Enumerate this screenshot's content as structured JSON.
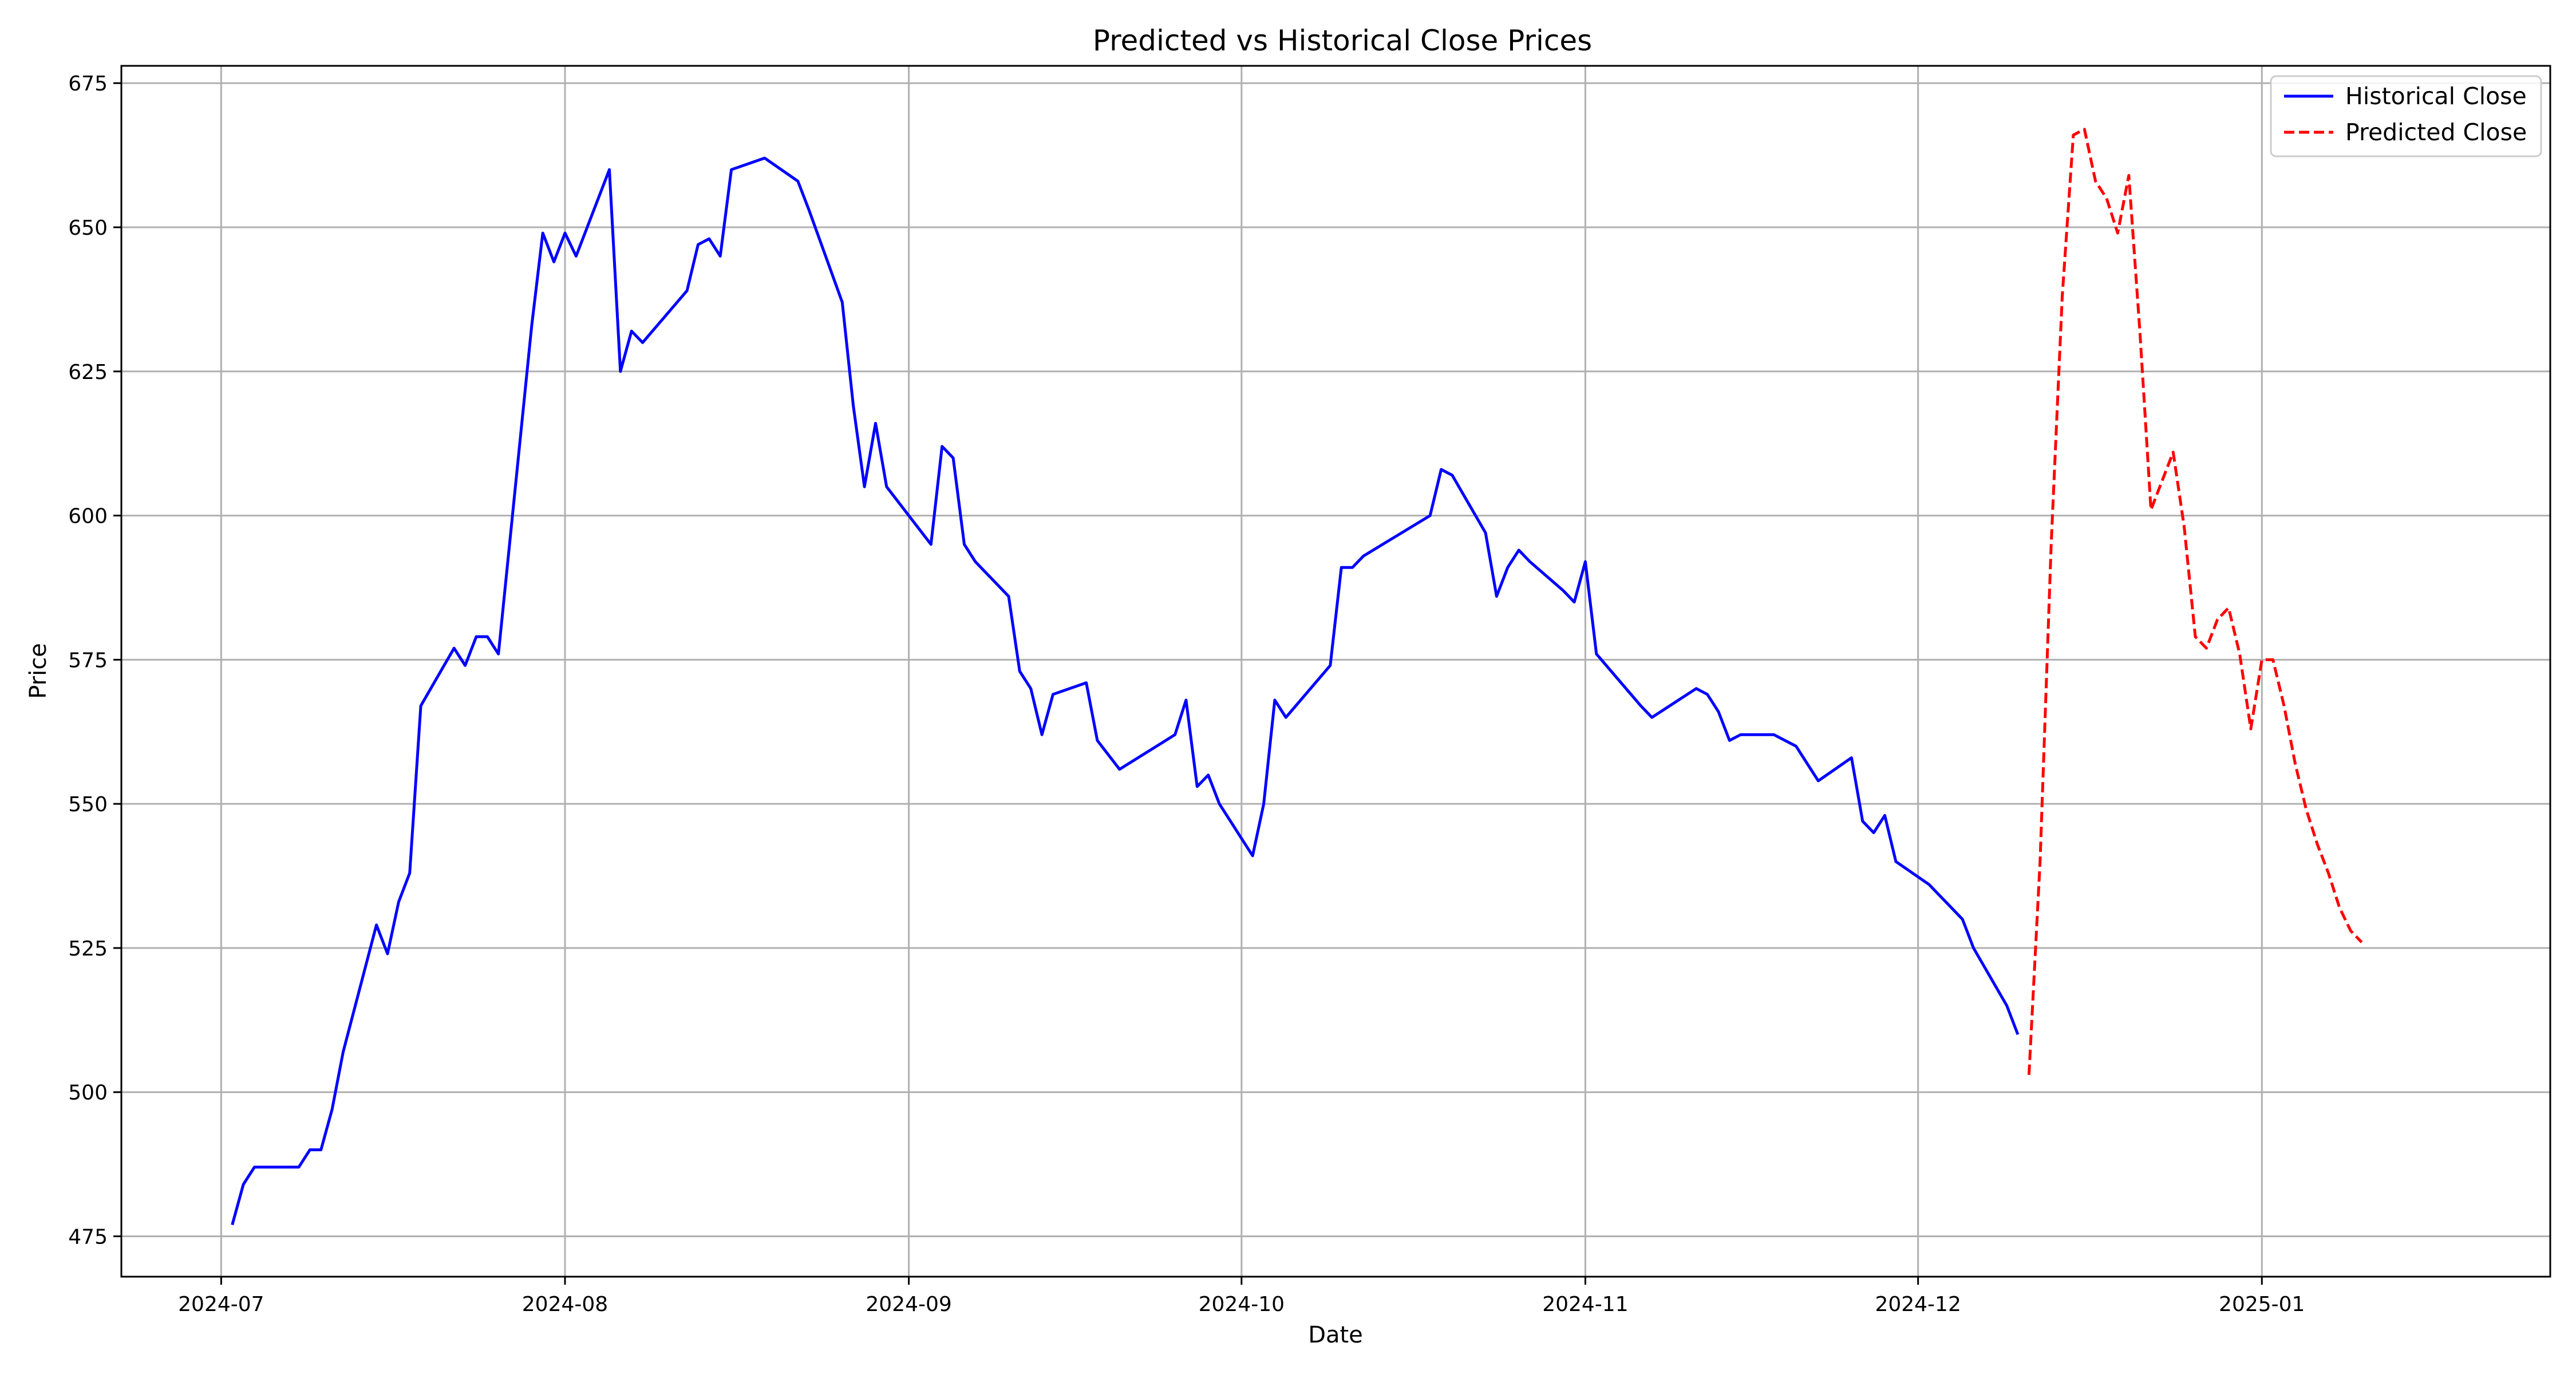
{
  "chart_data": {
    "type": "line",
    "title": "Predicted vs Historical Close Prices",
    "xlabel": "Date",
    "ylabel": "Price",
    "ylim": [
      468,
      678
    ],
    "xlim": [
      "2024-06-22",
      "2025-01-27"
    ],
    "grid": true,
    "legend_position": "top-right",
    "x_ticks": [
      "2024-07-01",
      "2024-08-01",
      "2024-09-01",
      "2024-10-01",
      "2024-11-01",
      "2024-12-01",
      "2025-01-01"
    ],
    "x_tick_labels": [
      "2024-07",
      "2024-08",
      "2024-09",
      "2024-10",
      "2024-11",
      "2024-12",
      "2025-01"
    ],
    "y_ticks": [
      475,
      500,
      525,
      550,
      575,
      600,
      625,
      650,
      675
    ],
    "series": [
      {
        "name": "Historical Close",
        "color": "#0000ff",
        "dash": "solid",
        "points": [
          [
            "2024-07-02",
            477
          ],
          [
            "2024-07-03",
            484
          ],
          [
            "2024-07-04",
            487
          ],
          [
            "2024-07-05",
            487
          ],
          [
            "2024-07-08",
            487
          ],
          [
            "2024-07-09",
            490
          ],
          [
            "2024-07-10",
            490
          ],
          [
            "2024-07-11",
            497
          ],
          [
            "2024-07-12",
            507
          ],
          [
            "2024-07-15",
            529
          ],
          [
            "2024-07-16",
            524
          ],
          [
            "2024-07-17",
            533
          ],
          [
            "2024-07-18",
            538
          ],
          [
            "2024-07-19",
            567
          ],
          [
            "2024-07-22",
            577
          ],
          [
            "2024-07-23",
            574
          ],
          [
            "2024-07-24",
            579
          ],
          [
            "2024-07-25",
            579
          ],
          [
            "2024-07-26",
            576
          ],
          [
            "2024-07-29",
            633
          ],
          [
            "2024-07-30",
            649
          ],
          [
            "2024-07-31",
            644
          ],
          [
            "2024-08-01",
            649
          ],
          [
            "2024-08-02",
            645
          ],
          [
            "2024-08-05",
            660
          ],
          [
            "2024-08-06",
            625
          ],
          [
            "2024-08-07",
            632
          ],
          [
            "2024-08-08",
            630
          ],
          [
            "2024-08-12",
            639
          ],
          [
            "2024-08-13",
            647
          ],
          [
            "2024-08-14",
            648
          ],
          [
            "2024-08-15",
            645
          ],
          [
            "2024-08-16",
            660
          ],
          [
            "2024-08-19",
            662
          ],
          [
            "2024-08-22",
            658
          ],
          [
            "2024-08-23",
            653
          ],
          [
            "2024-08-26",
            637
          ],
          [
            "2024-08-27",
            619
          ],
          [
            "2024-08-28",
            605
          ],
          [
            "2024-08-29",
            616
          ],
          [
            "2024-08-30",
            605
          ],
          [
            "2024-09-03",
            595
          ],
          [
            "2024-09-04",
            612
          ],
          [
            "2024-09-05",
            610
          ],
          [
            "2024-09-06",
            595
          ],
          [
            "2024-09-07",
            592
          ],
          [
            "2024-09-10",
            586
          ],
          [
            "2024-09-11",
            573
          ],
          [
            "2024-09-12",
            570
          ],
          [
            "2024-09-13",
            562
          ],
          [
            "2024-09-14",
            569
          ],
          [
            "2024-09-17",
            571
          ],
          [
            "2024-09-18",
            561
          ],
          [
            "2024-09-20",
            556
          ],
          [
            "2024-09-25",
            562
          ],
          [
            "2024-09-26",
            568
          ],
          [
            "2024-09-27",
            553
          ],
          [
            "2024-09-28",
            555
          ],
          [
            "2024-09-29",
            550
          ],
          [
            "2024-10-02",
            541
          ],
          [
            "2024-10-03",
            550
          ],
          [
            "2024-10-04",
            568
          ],
          [
            "2024-10-05",
            565
          ],
          [
            "2024-10-09",
            574
          ],
          [
            "2024-10-10",
            591
          ],
          [
            "2024-10-11",
            591
          ],
          [
            "2024-10-12",
            593
          ],
          [
            "2024-10-18",
            600
          ],
          [
            "2024-10-19",
            608
          ],
          [
            "2024-10-20",
            607
          ],
          [
            "2024-10-23",
            597
          ],
          [
            "2024-10-24",
            586
          ],
          [
            "2024-10-25",
            591
          ],
          [
            "2024-10-26",
            594
          ],
          [
            "2024-10-27",
            592
          ],
          [
            "2024-10-30",
            587
          ],
          [
            "2024-10-31",
            585
          ],
          [
            "2024-11-01",
            592
          ],
          [
            "2024-11-02",
            576
          ],
          [
            "2024-11-06",
            567
          ],
          [
            "2024-11-07",
            565
          ],
          [
            "2024-11-11",
            570
          ],
          [
            "2024-11-12",
            569
          ],
          [
            "2024-11-13",
            566
          ],
          [
            "2024-11-14",
            561
          ],
          [
            "2024-11-15",
            562
          ],
          [
            "2024-11-18",
            562
          ],
          [
            "2024-11-20",
            560
          ],
          [
            "2024-11-21",
            557
          ],
          [
            "2024-11-22",
            554
          ],
          [
            "2024-11-25",
            558
          ],
          [
            "2024-11-26",
            547
          ],
          [
            "2024-11-27",
            545
          ],
          [
            "2024-11-28",
            548
          ],
          [
            "2024-11-29",
            540
          ],
          [
            "2024-12-02",
            536
          ],
          [
            "2024-12-05",
            530
          ],
          [
            "2024-12-06",
            525
          ],
          [
            "2024-12-09",
            515
          ],
          [
            "2024-12-10",
            510
          ]
        ]
      },
      {
        "name": "Predicted Close",
        "color": "#ff0000",
        "dash": "dashed",
        "points": [
          [
            "2024-12-11",
            503
          ],
          [
            "2024-12-12",
            540
          ],
          [
            "2024-12-13",
            595
          ],
          [
            "2024-12-14",
            638
          ],
          [
            "2024-12-15",
            666
          ],
          [
            "2024-12-16",
            667
          ],
          [
            "2024-12-17",
            658
          ],
          [
            "2024-12-18",
            655
          ],
          [
            "2024-12-19",
            649
          ],
          [
            "2024-12-20",
            659
          ],
          [
            "2024-12-21",
            632
          ],
          [
            "2024-12-22",
            601
          ],
          [
            "2024-12-23",
            606
          ],
          [
            "2024-12-24",
            611
          ],
          [
            "2024-12-25",
            598
          ],
          [
            "2024-12-26",
            579
          ],
          [
            "2024-12-27",
            577
          ],
          [
            "2024-12-28",
            582
          ],
          [
            "2024-12-29",
            584
          ],
          [
            "2024-12-30",
            576
          ],
          [
            "2024-12-31",
            563
          ],
          [
            "2025-01-01",
            575
          ],
          [
            "2025-01-02",
            575
          ],
          [
            "2025-01-03",
            567
          ],
          [
            "2025-01-04",
            557
          ],
          [
            "2025-01-05",
            549
          ],
          [
            "2025-01-06",
            543
          ],
          [
            "2025-01-07",
            538
          ],
          [
            "2025-01-08",
            532
          ],
          [
            "2025-01-09",
            528
          ],
          [
            "2025-01-10",
            526
          ]
        ]
      }
    ]
  }
}
